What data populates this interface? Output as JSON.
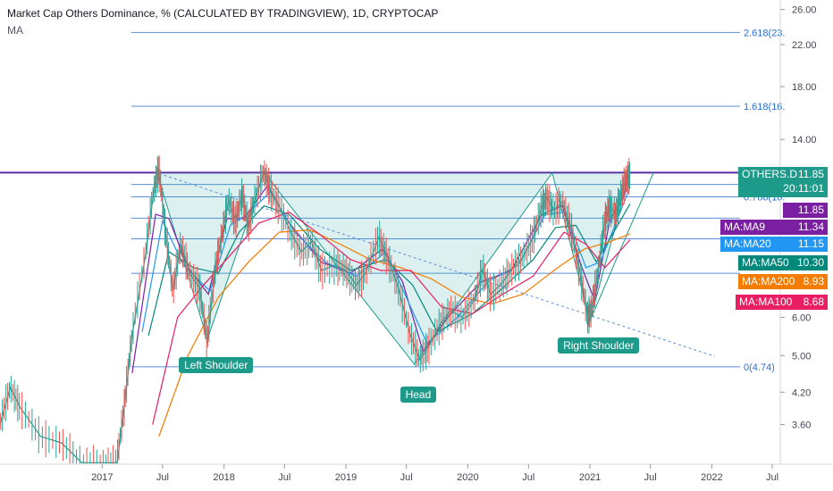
{
  "header": {
    "title": "Market Cap Others Dominance, % (CALCULATED BY TRADINGVIEW), 1D, CRYPTOCAP",
    "indicator": "MA"
  },
  "chart_data": {
    "type": "line",
    "scale": "log",
    "ylim": [
      2.98,
      27.2
    ],
    "xlim": [
      "2016-03-01",
      "2022-07-25"
    ],
    "y_ticks": [
      "26.00",
      "22.00",
      "18.00",
      "14.00",
      "6.00",
      "5.00",
      "4.20",
      "3.60"
    ],
    "x_ticks": [
      {
        "label": "2017",
        "date": "2017-01-01"
      },
      {
        "label": "Jul",
        "date": "2017-07-01"
      },
      {
        "label": "2018",
        "date": "2018-01-01"
      },
      {
        "label": "Jul",
        "date": "2018-07-01"
      },
      {
        "label": "2019",
        "date": "2019-01-01"
      },
      {
        "label": "Jul",
        "date": "2019-07-01"
      },
      {
        "label": "2020",
        "date": "2020-01-01"
      },
      {
        "label": "Jul",
        "date": "2020-07-01"
      },
      {
        "label": "2021",
        "date": "2021-01-01"
      },
      {
        "label": "Jul",
        "date": "2021-07-01"
      },
      {
        "label": "2022",
        "date": "2022-01-01"
      },
      {
        "label": "Jul",
        "date": "2022-07-01"
      }
    ],
    "price_series": {
      "name": "OTHERS.D",
      "color": "#26a69a",
      "points": [
        [
          "2016-03-01",
          3.6
        ],
        [
          "2016-04-01",
          4.3
        ],
        [
          "2016-05-01",
          3.9
        ],
        [
          "2016-07-01",
          3.4
        ],
        [
          "2016-09-01",
          3.3
        ],
        [
          "2016-11-01",
          3.0
        ],
        [
          "2017-01-01",
          3.0
        ],
        [
          "2017-02-15",
          3.0
        ],
        [
          "2017-03-10",
          4.0
        ],
        [
          "2017-04-01",
          5.5
        ],
        [
          "2017-05-10",
          8.0
        ],
        [
          "2017-06-05",
          11.0
        ],
        [
          "2017-06-20",
          12.2
        ],
        [
          "2017-07-10",
          9.0
        ],
        [
          "2017-08-01",
          6.8
        ],
        [
          "2017-08-25",
          8.5
        ],
        [
          "2017-09-20",
          7.4
        ],
        [
          "2017-10-20",
          6.9
        ],
        [
          "2017-11-12",
          5.3
        ],
        [
          "2017-12-05",
          7.5
        ],
        [
          "2017-12-25",
          8.8
        ],
        [
          "2018-01-15",
          10.5
        ],
        [
          "2018-02-05",
          9.5
        ],
        [
          "2018-02-25",
          10.8
        ],
        [
          "2018-03-15",
          9.2
        ],
        [
          "2018-04-05",
          10.6
        ],
        [
          "2018-05-01",
          12.0
        ],
        [
          "2018-05-20",
          11.0
        ],
        [
          "2018-06-15",
          10.2
        ],
        [
          "2018-07-20",
          9.0
        ],
        [
          "2018-08-20",
          8.2
        ],
        [
          "2018-09-20",
          8.6
        ],
        [
          "2018-10-20",
          7.5
        ],
        [
          "2018-12-01",
          7.7
        ],
        [
          "2019-01-01",
          7.5
        ],
        [
          "2019-02-01",
          7.0
        ],
        [
          "2019-03-01",
          7.4
        ],
        [
          "2019-04-10",
          8.8
        ],
        [
          "2019-05-05",
          8.0
        ],
        [
          "2019-06-05",
          7.0
        ],
        [
          "2019-07-10",
          5.6
        ],
        [
          "2019-08-10",
          4.9
        ],
        [
          "2019-09-05",
          5.2
        ],
        [
          "2019-10-10",
          5.8
        ],
        [
          "2019-11-10",
          6.2
        ],
        [
          "2019-12-15",
          6.0
        ],
        [
          "2020-01-20",
          6.5
        ],
        [
          "2020-02-15",
          7.5
        ],
        [
          "2020-03-10",
          6.7
        ],
        [
          "2020-04-15",
          7.1
        ],
        [
          "2020-05-15",
          7.6
        ],
        [
          "2020-06-15",
          8.0
        ],
        [
          "2020-07-15",
          8.8
        ],
        [
          "2020-08-10",
          10.2
        ],
        [
          "2020-08-25",
          10.6
        ],
        [
          "2020-09-15",
          10.0
        ],
        [
          "2020-10-10",
          10.4
        ],
        [
          "2020-11-05",
          9.2
        ],
        [
          "2020-12-01",
          7.5
        ],
        [
          "2020-12-25",
          6.0
        ],
        [
          "2021-01-05",
          6.2
        ],
        [
          "2021-01-25",
          7.4
        ],
        [
          "2021-02-15",
          9.5
        ],
        [
          "2021-03-01",
          10.2
        ],
        [
          "2021-03-20",
          9.8
        ],
        [
          "2021-04-05",
          10.8
        ],
        [
          "2021-04-20",
          11.6
        ],
        [
          "2021-05-01",
          11.85
        ]
      ]
    },
    "moving_averages": [
      {
        "name": "MA:MA9",
        "value": 11.34,
        "color": "#7b1fa2",
        "points": [
          [
            "2017-04-01",
            4.6
          ],
          [
            "2017-06-10",
            9.8
          ],
          [
            "2017-07-20",
            9.6
          ],
          [
            "2017-09-15",
            7.6
          ],
          [
            "2017-11-15",
            6.7
          ],
          [
            "2018-01-10",
            9.6
          ],
          [
            "2018-03-01",
            9.6
          ],
          [
            "2018-05-10",
            11.2
          ],
          [
            "2018-07-15",
            9.4
          ],
          [
            "2018-10-20",
            7.8
          ],
          [
            "2019-01-15",
            7.4
          ],
          [
            "2019-04-20",
            8.3
          ],
          [
            "2019-06-20",
            7.1
          ],
          [
            "2019-08-20",
            5.1
          ],
          [
            "2019-11-01",
            6.0
          ],
          [
            "2020-02-10",
            7.1
          ],
          [
            "2020-05-10",
            7.5
          ],
          [
            "2020-08-10",
            9.8
          ],
          [
            "2020-10-10",
            10.2
          ],
          [
            "2020-12-05",
            7.7
          ],
          [
            "2021-01-15",
            6.5
          ],
          [
            "2021-03-01",
            9.5
          ],
          [
            "2021-05-01",
            11.34
          ]
        ]
      },
      {
        "name": "MA:MA20",
        "value": 11.15,
        "color": "#2196f3",
        "points": [
          [
            "2017-05-01",
            5.6
          ],
          [
            "2017-07-01",
            9.5
          ],
          [
            "2017-09-01",
            7.7
          ],
          [
            "2017-11-20",
            6.8
          ],
          [
            "2018-01-20",
            9.3
          ],
          [
            "2018-03-10",
            9.8
          ],
          [
            "2018-05-20",
            10.9
          ],
          [
            "2018-08-01",
            9.0
          ],
          [
            "2018-11-01",
            7.8
          ],
          [
            "2019-02-01",
            7.3
          ],
          [
            "2019-05-01",
            8.2
          ],
          [
            "2019-07-01",
            6.6
          ],
          [
            "2019-09-01",
            5.3
          ],
          [
            "2019-12-01",
            6.0
          ],
          [
            "2020-03-01",
            7.1
          ],
          [
            "2020-06-01",
            7.7
          ],
          [
            "2020-08-20",
            9.8
          ],
          [
            "2020-10-20",
            9.9
          ],
          [
            "2020-12-20",
            7.6
          ],
          [
            "2021-02-01",
            7.8
          ],
          [
            "2021-05-01",
            11.15
          ]
        ]
      },
      {
        "name": "MA:MA50",
        "value": 10.3,
        "color": "#00897b",
        "points": [
          [
            "2017-05-20",
            5.5
          ],
          [
            "2017-07-20",
            8.2
          ],
          [
            "2017-10-01",
            7.6
          ],
          [
            "2017-12-15",
            7.4
          ],
          [
            "2018-02-15",
            9.0
          ],
          [
            "2018-05-01",
            10.2
          ],
          [
            "2018-07-15",
            9.8
          ],
          [
            "2018-10-15",
            8.3
          ],
          [
            "2019-01-15",
            7.5
          ],
          [
            "2019-05-01",
            7.9
          ],
          [
            "2019-07-20",
            7.0
          ],
          [
            "2019-10-01",
            5.6
          ],
          [
            "2020-01-15",
            6.1
          ],
          [
            "2020-04-15",
            6.9
          ],
          [
            "2020-07-15",
            7.9
          ],
          [
            "2020-09-20",
            9.2
          ],
          [
            "2020-11-20",
            9.3
          ],
          [
            "2021-01-20",
            7.8
          ],
          [
            "2021-05-01",
            10.3
          ]
        ]
      },
      {
        "name": "MA:MA200",
        "value": 8.93,
        "color": "#f57c00",
        "points": [
          [
            "2017-06-20",
            3.4
          ],
          [
            "2017-09-15",
            5.0
          ],
          [
            "2017-12-15",
            6.6
          ],
          [
            "2018-03-15",
            7.8
          ],
          [
            "2018-06-15",
            9.0
          ],
          [
            "2018-09-15",
            9.1
          ],
          [
            "2018-12-15",
            8.5
          ],
          [
            "2019-03-15",
            7.9
          ],
          [
            "2019-06-15",
            7.6
          ],
          [
            "2019-09-15",
            7.2
          ],
          [
            "2019-12-15",
            6.6
          ],
          [
            "2020-03-15",
            6.4
          ],
          [
            "2020-06-15",
            6.7
          ],
          [
            "2020-09-15",
            7.5
          ],
          [
            "2020-12-15",
            8.3
          ],
          [
            "2021-03-01",
            8.6
          ],
          [
            "2021-05-01",
            8.93
          ]
        ]
      },
      {
        "name": "MA:MA100",
        "value": 8.68,
        "color": "#e91e63",
        "points": [
          [
            "2017-06-01",
            3.6
          ],
          [
            "2017-08-15",
            6.0
          ],
          [
            "2017-11-01",
            7.0
          ],
          [
            "2018-01-15",
            8.0
          ],
          [
            "2018-04-15",
            9.4
          ],
          [
            "2018-07-15",
            9.9
          ],
          [
            "2018-10-15",
            8.9
          ],
          [
            "2019-01-15",
            7.9
          ],
          [
            "2019-04-15",
            7.5
          ],
          [
            "2019-07-15",
            7.5
          ],
          [
            "2019-10-15",
            6.3
          ],
          [
            "2020-01-15",
            6.1
          ],
          [
            "2020-04-15",
            6.7
          ],
          [
            "2020-07-15",
            7.3
          ],
          [
            "2020-10-15",
            9.0
          ],
          [
            "2020-12-20",
            8.5
          ],
          [
            "2021-02-15",
            7.6
          ],
          [
            "2021-05-01",
            8.68
          ]
        ]
      }
    ],
    "current": {
      "symbol": "OTHERS.D",
      "value": "11.85",
      "countdown": "20:11:01",
      "color": "#1d9a8a"
    },
    "last_value_badge": {
      "value": "11.85",
      "color": "#7b1fa2"
    },
    "fib_levels": [
      {
        "label": "2.618(23.",
        "value": 23.3
      },
      {
        "label": "1.618(16.",
        "value": 16.4
      },
      {
        "label": "0.887(11.",
        "value": 11.3
      },
      {
        "label": "0.786(10.",
        "value": 10.65
      },
      {
        "label": "0(4.74)",
        "value": 4.74
      }
    ],
    "fib_extra_lines": [
      11.95,
      9.62,
      8.72,
      7.4
    ],
    "resistance_line": {
      "value": 11.95,
      "color": "#5a2aa8"
    },
    "trend_line": {
      "from": [
        "2017-06-20",
        11.9
      ],
      "to": [
        "2022-01-10",
        4.98
      ]
    },
    "pattern_zigzag": [
      [
        "2017-06-15",
        11.9
      ],
      [
        "2017-11-12",
        5.4
      ],
      [
        "2018-05-01",
        11.95
      ],
      [
        "2019-07-25",
        4.8
      ],
      [
        "2020-09-10",
        11.95
      ],
      [
        "2021-01-01",
        5.9
      ],
      [
        "2021-05-01",
        11.95
      ]
    ],
    "annotations": [
      {
        "text": "Left Shoulder",
        "date": "2017-11-12",
        "value": 5.0
      },
      {
        "text": "Head",
        "date": "2019-07-25",
        "value": 4.35
      },
      {
        "text": "Right Shoulder",
        "date": "2021-01-01",
        "value": 5.5
      }
    ]
  }
}
